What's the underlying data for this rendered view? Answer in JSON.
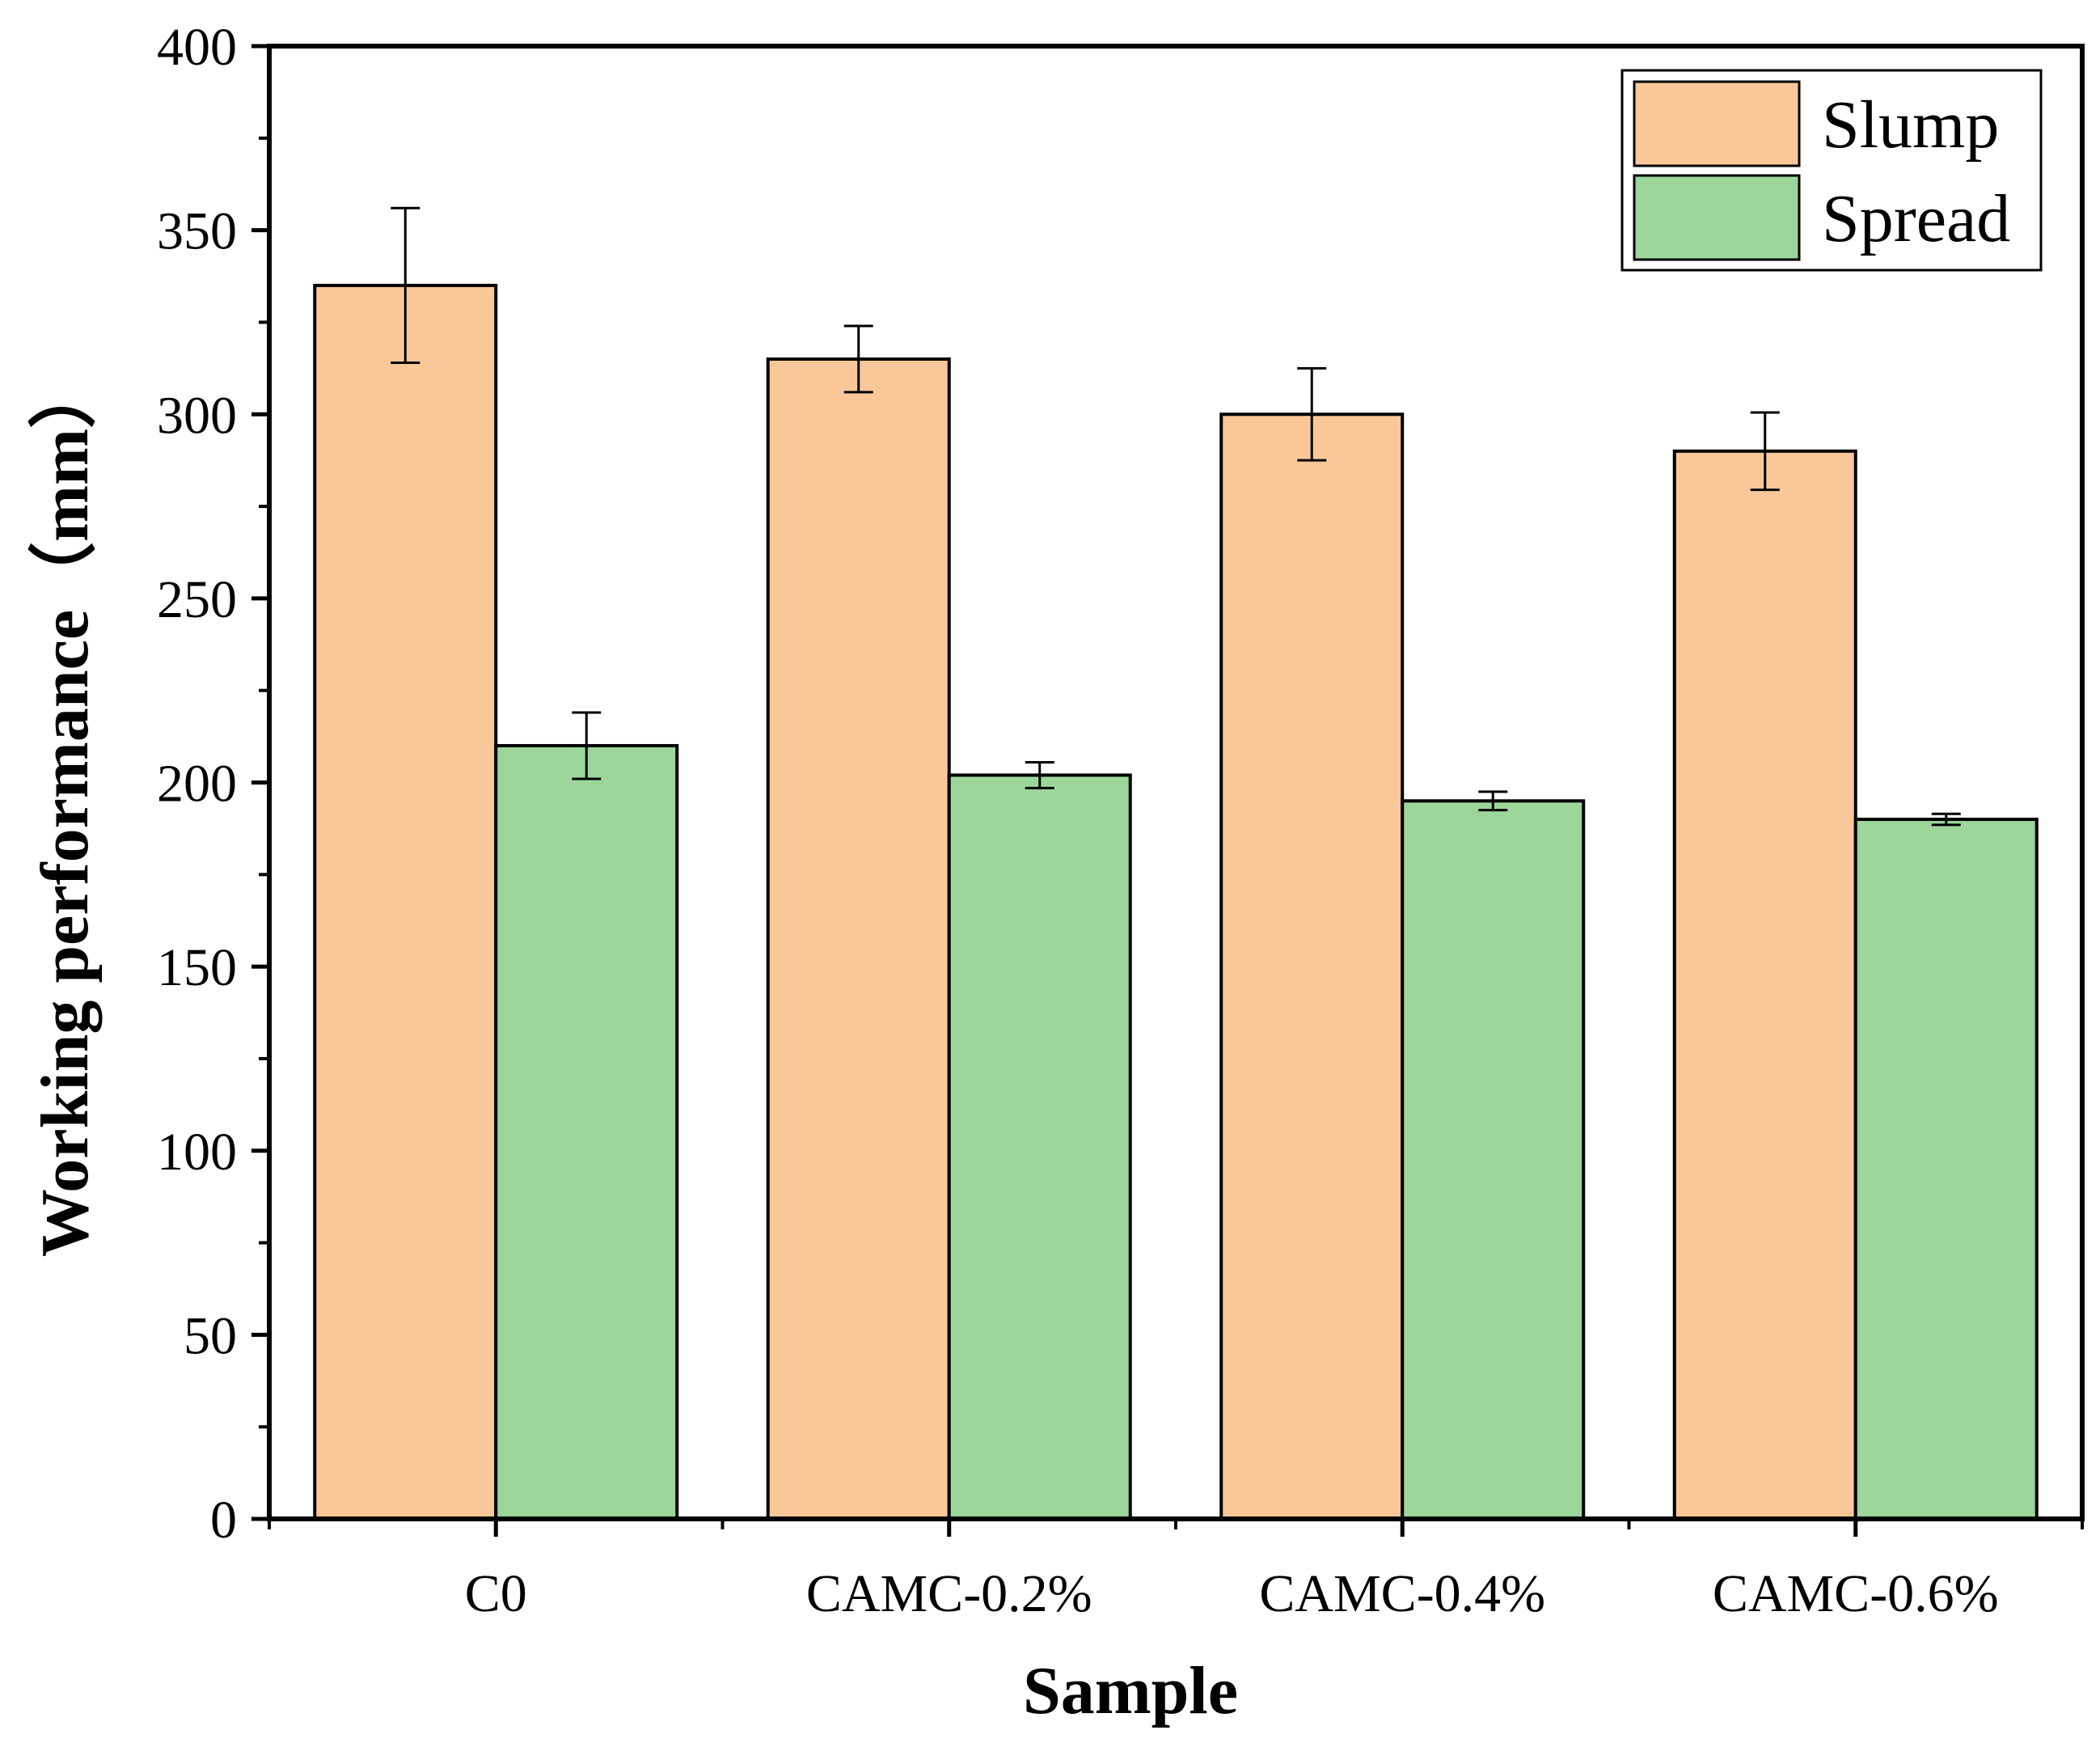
{
  "chart_data": {
    "type": "bar",
    "title": "",
    "xlabel": "Sample",
    "ylabel": "Working performance（mm）",
    "categories": [
      "C0",
      "CAMC-0.2%",
      "CAMC-0.4%",
      "CAMC-0.6%"
    ],
    "series": [
      {
        "name": "Slump",
        "color": "#fac898",
        "values": [
          335,
          315,
          300,
          290
        ],
        "errors": [
          21,
          9,
          12.5,
          10.5
        ]
      },
      {
        "name": "Spread",
        "color": "#9dd69b",
        "values": [
          210,
          202,
          195,
          190
        ],
        "errors": [
          9,
          3.5,
          2.5,
          1.5
        ]
      }
    ],
    "ylim": [
      0,
      400
    ],
    "yticks": [
      0,
      50,
      100,
      150,
      200,
      250,
      300,
      350,
      400
    ],
    "ytick_labels": [
      "0",
      "50",
      "100",
      "150",
      "200",
      "250",
      "300",
      "350",
      "400"
    ],
    "legend": {
      "position": "top-right",
      "entries": [
        "Slump",
        "Spread"
      ]
    },
    "grid": false
  }
}
